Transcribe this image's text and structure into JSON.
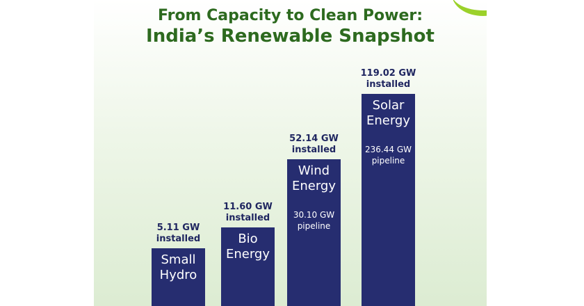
{
  "chart_data": {
    "type": "bar",
    "title": "From Capacity to Clean Power:",
    "subtitle": "India’s Renewable Snapshot",
    "categories": [
      "Small Hydro",
      "Bio Energy",
      "Wind Energy",
      "Solar Energy"
    ],
    "values": [
      5.11,
      11.6,
      52.14,
      119.02
    ],
    "value_labels": [
      "5.11 GW installed",
      "11.60 GW installed",
      "52.14 GW installed",
      "119.02 GW installed"
    ],
    "pipeline": [
      null,
      null,
      30.1,
      236.44
    ],
    "pipeline_labels": [
      null,
      null,
      "30.10 GW pipeline",
      "236.44 GW pipeline"
    ],
    "scale": "sqrt",
    "color": "#262d70"
  }
}
